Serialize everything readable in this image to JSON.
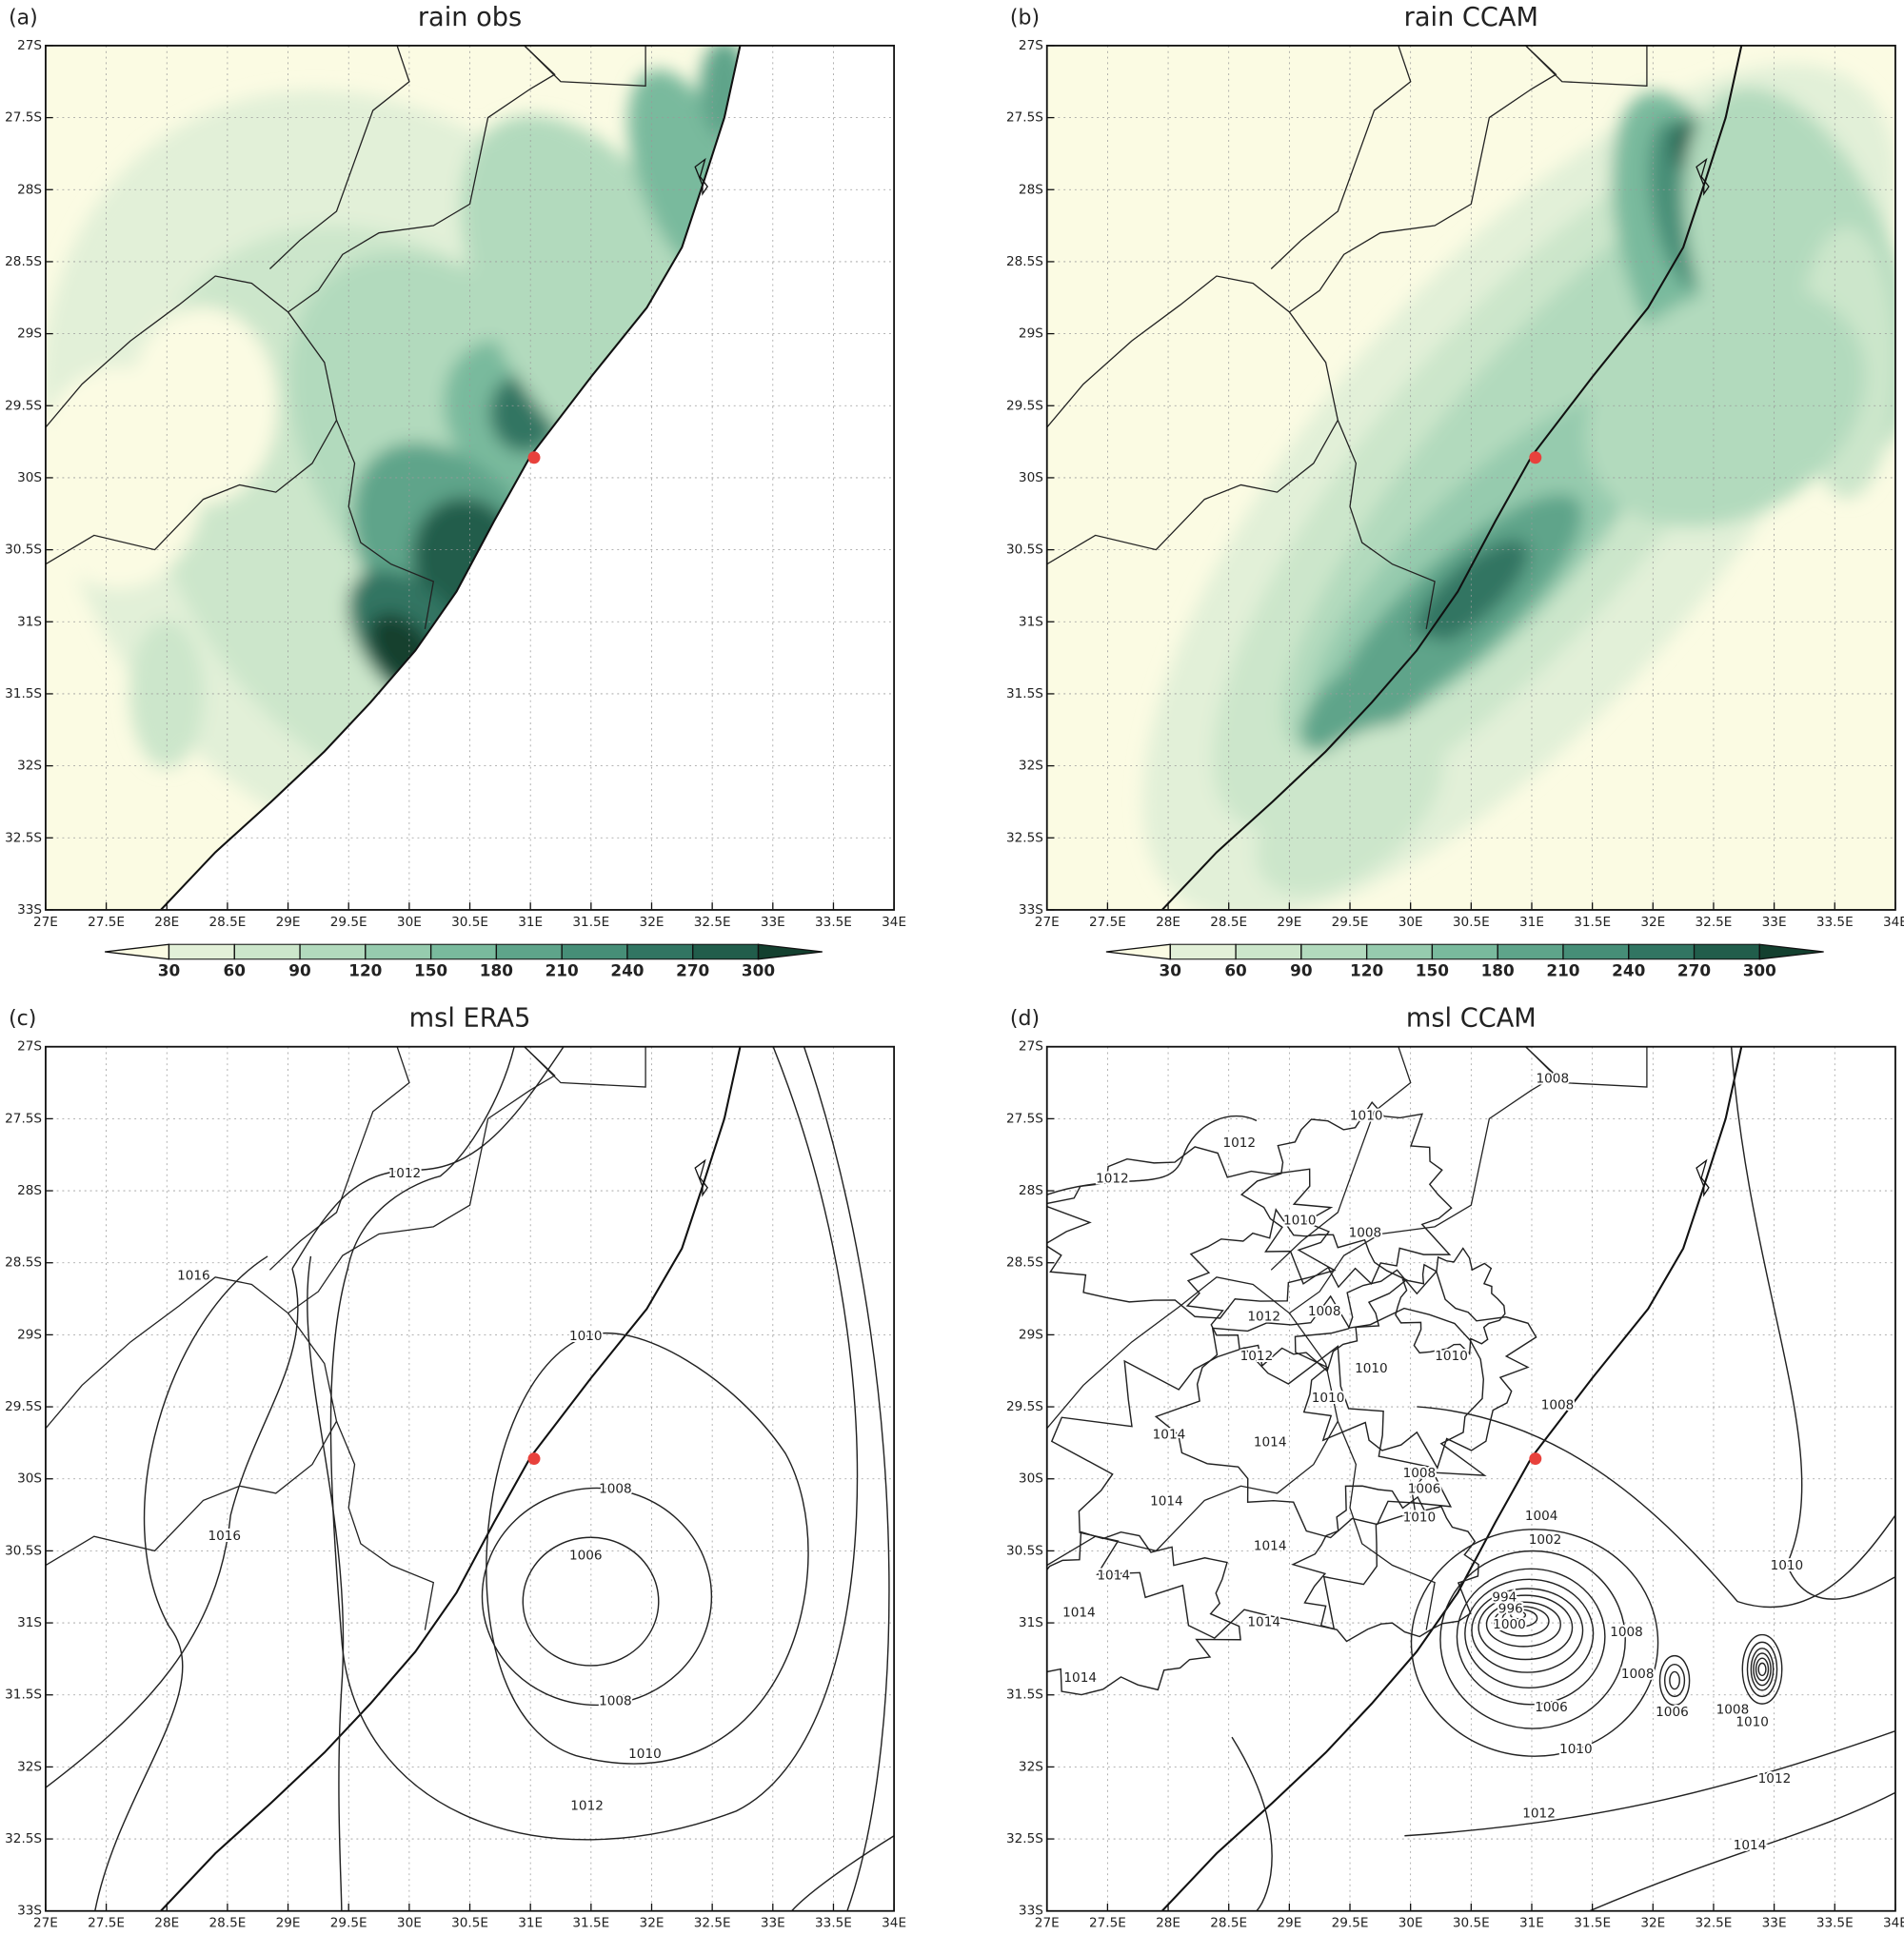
{
  "panels": [
    {
      "letter": "(a)",
      "title": "rain obs"
    },
    {
      "letter": "(b)",
      "title": "rain CCAM"
    },
    {
      "letter": "(c)",
      "title": "msl ERA5",
      "contour_labels": [
        1012,
        1016,
        1010,
        1008,
        1006,
        1016,
        1008,
        1010,
        1012
      ]
    },
    {
      "letter": "(d)",
      "title": "msl CCAM",
      "contour_labels": [
        1008,
        1010,
        1012,
        1012,
        1010,
        1008,
        1008,
        1012,
        1012,
        1010,
        1010,
        1010,
        1008,
        1014,
        1014,
        1008,
        1006,
        1014,
        1010,
        1004,
        1014,
        1002,
        1014,
        1010,
        994,
        996,
        1014,
        1014,
        1000,
        1008,
        1014,
        1008,
        1006,
        1006,
        1008,
        1010,
        1010,
        1012,
        1012,
        1014
      ]
    }
  ],
  "map_axes": {
    "xlim": [
      27,
      34
    ],
    "ylim": [
      -33,
      -27
    ],
    "grid": true,
    "xticks": [
      {
        "value": 27,
        "label": "27E"
      },
      {
        "value": 27.5,
        "label": "27.5E"
      },
      {
        "value": 28,
        "label": "28E"
      },
      {
        "value": 28.5,
        "label": "28.5E"
      },
      {
        "value": 29,
        "label": "29E"
      },
      {
        "value": 29.5,
        "label": "29.5E"
      },
      {
        "value": 30,
        "label": "30E"
      },
      {
        "value": 30.5,
        "label": "30.5E"
      },
      {
        "value": 31,
        "label": "31E"
      },
      {
        "value": 31.5,
        "label": "31.5E"
      },
      {
        "value": 32,
        "label": "32E"
      },
      {
        "value": 32.5,
        "label": "32.5E"
      },
      {
        "value": 33,
        "label": "33E"
      },
      {
        "value": 33.5,
        "label": "33.5E"
      },
      {
        "value": 34,
        "label": "34E"
      }
    ],
    "yticks": [
      {
        "value": -27,
        "label": "27S"
      },
      {
        "value": -27.5,
        "label": "27.5S"
      },
      {
        "value": -28,
        "label": "28S"
      },
      {
        "value": -28.5,
        "label": "28.5S"
      },
      {
        "value": -29,
        "label": "29S"
      },
      {
        "value": -29.5,
        "label": "29.5S"
      },
      {
        "value": -30,
        "label": "30S"
      },
      {
        "value": -30.5,
        "label": "30.5S"
      },
      {
        "value": -31,
        "label": "31S"
      },
      {
        "value": -31.5,
        "label": "31.5S"
      },
      {
        "value": -32,
        "label": "32S"
      },
      {
        "value": -32.5,
        "label": "32.5S"
      },
      {
        "value": -33,
        "label": "33S"
      }
    ]
  },
  "colorbar": {
    "ticks": [
      30,
      60,
      90,
      120,
      150,
      180,
      210,
      240,
      270,
      300
    ],
    "colors": [
      "#fbfbe3",
      "#e2f0d8",
      "#cce6cb",
      "#b2dabd",
      "#96cbae",
      "#79ba9d",
      "#5ea48a",
      "#468e77",
      "#317562",
      "#215d4b",
      "#13402f"
    ]
  },
  "marker": {
    "lon": 31.03,
    "lat": -29.86,
    "color": "#e8413c"
  }
}
